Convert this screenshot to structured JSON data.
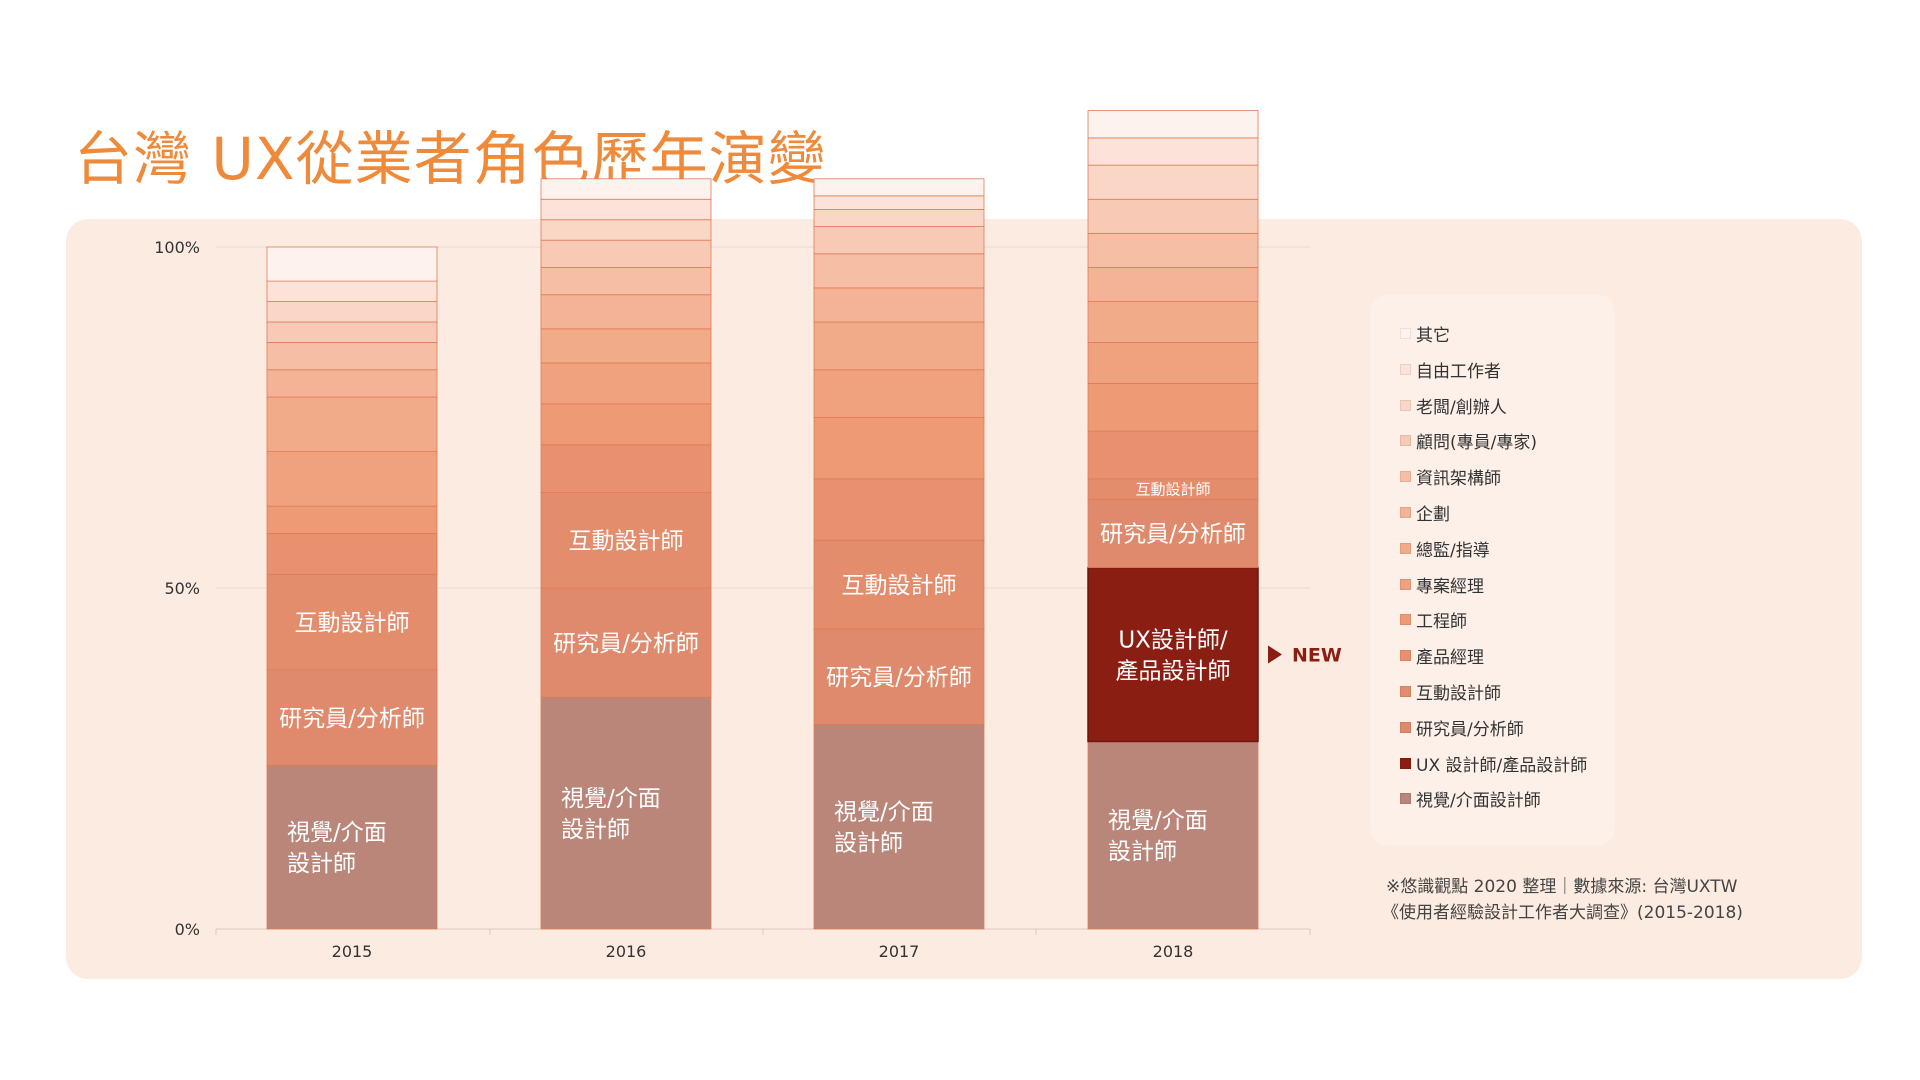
{
  "title": "台灣 UX從業者角色歷年演變",
  "source_line1": "※悠識觀點 2020 整理｜數據來源: 台灣UXTW",
  "source_line2": "《使用者經驗設計工作者大調查》(2015-2018)",
  "new_marker": "NEW",
  "chart_data": {
    "type": "bar",
    "stacked": true,
    "percent": true,
    "categories": [
      "2015",
      "2016",
      "2017",
      "2018"
    ],
    "y_ticks": [
      "0%",
      "50%",
      "100%"
    ],
    "ylim": [
      0,
      100
    ],
    "legend_position": "right",
    "series": [
      {
        "name": "視覺/介面設計師",
        "label": "視覺/介面\n設計師",
        "color": "#b98679",
        "values": [
          24,
          34,
          30,
          27.5
        ]
      },
      {
        "name": "UX 設計師/產品設計師",
        "label": "UX設計師/\n產品設計師",
        "color": "#8b1e12",
        "values": [
          0,
          0,
          0,
          25.5
        ]
      },
      {
        "name": "研究員/分析師",
        "label": "研究員/分析師",
        "color": "#df8a6c",
        "values": [
          14,
          16,
          14,
          10
        ]
      },
      {
        "name": "互動設計師",
        "label": "互動設計師",
        "color": "#e48d6c",
        "values": [
          14,
          14,
          13,
          3
        ]
      },
      {
        "name": "產品經理",
        "color": "#e9906e",
        "values": [
          6,
          7,
          9,
          7
        ]
      },
      {
        "name": "工程師",
        "color": "#ed9a75",
        "values": [
          4,
          6,
          9,
          7
        ]
      },
      {
        "name": "專案經理",
        "color": "#f0a17e",
        "values": [
          8,
          6,
          7,
          6
        ]
      },
      {
        "name": "總監/指導",
        "color": "#f2ab88",
        "values": [
          8,
          5,
          7,
          6
        ]
      },
      {
        "name": "企劃",
        "color": "#f4b396",
        "values": [
          4,
          5,
          5,
          5
        ]
      },
      {
        "name": "資訊架構師",
        "color": "#f6bea4",
        "values": [
          4,
          4,
          5,
          5
        ]
      },
      {
        "name": "顧問(專員/專家)",
        "color": "#f8cab5",
        "values": [
          3,
          4,
          4,
          5
        ]
      },
      {
        "name": "老闆/創辦人",
        "color": "#fad6c6",
        "values": [
          3,
          3,
          2.5,
          5
        ]
      },
      {
        "name": "自由工作者",
        "color": "#fce2d8",
        "values": [
          3,
          3,
          2,
          4
        ]
      },
      {
        "name": "其它",
        "color": "#fdf2ee",
        "values": [
          5,
          3,
          2.5,
          4
        ]
      }
    ]
  }
}
